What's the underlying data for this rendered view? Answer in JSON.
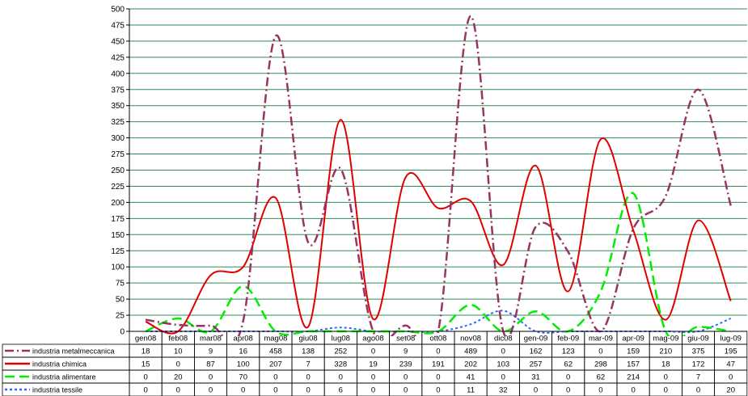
{
  "chart_data": {
    "type": "line",
    "title": "",
    "xlabel": "",
    "ylabel": "",
    "ylim": [
      0,
      500
    ],
    "y_ticks": [
      0,
      25,
      50,
      75,
      100,
      125,
      150,
      175,
      200,
      225,
      250,
      275,
      300,
      325,
      350,
      375,
      400,
      425,
      450,
      475,
      500
    ],
    "grid": true,
    "legend": "data-table-left",
    "categories": [
      "gen08",
      "feb08",
      "mar08",
      "apr08",
      "mag08",
      "giu08",
      "lug08",
      "ago08",
      "set08",
      "ott08",
      "nov08",
      "dic08",
      "gen-09",
      "feb-09",
      "mar-09",
      "apr-09",
      "mag-09",
      "giu-09",
      "lug-09"
    ],
    "series": [
      {
        "name": "industria metalmeccanica",
        "color": "#993366",
        "dash": "dash-dot",
        "values": [
          18,
          10,
          9,
          16,
          458,
          138,
          252,
          0,
          9,
          0,
          489,
          0,
          162,
          123,
          0,
          159,
          210,
          375,
          195
        ]
      },
      {
        "name": "industria chimica",
        "color": "#e00000",
        "dash": "solid",
        "values": [
          15,
          0,
          87,
          100,
          207,
          7,
          328,
          19,
          239,
          191,
          202,
          103,
          257,
          62,
          298,
          157,
          18,
          172,
          47
        ]
      },
      {
        "name": "industria alimentare",
        "color": "#00ee00",
        "dash": "dash",
        "values": [
          0,
          20,
          0,
          70,
          0,
          0,
          0,
          0,
          0,
          0,
          41,
          0,
          31,
          0,
          62,
          214,
          0,
          7,
          0
        ]
      },
      {
        "name": "industria tessile",
        "color": "#3366ff",
        "dash": "dot",
        "values": [
          0,
          0,
          0,
          0,
          0,
          0,
          6,
          0,
          0,
          0,
          11,
          32,
          0,
          0,
          0,
          0,
          0,
          0,
          20
        ]
      }
    ]
  }
}
